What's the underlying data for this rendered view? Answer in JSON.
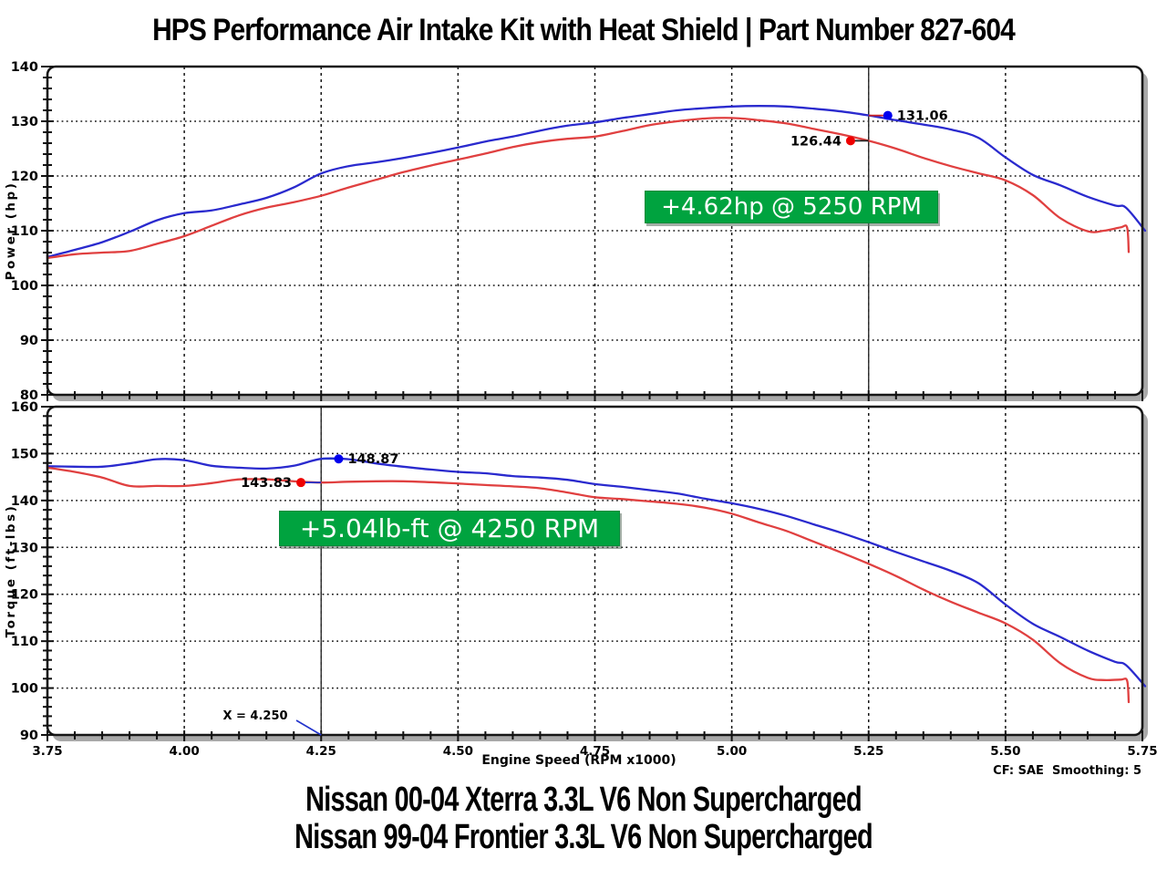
{
  "title": "HPS Performance Air Intake Kit with Heat Shield | Part Number 827-604",
  "footer": {
    "line1": "Nissan 00-04 Xterra 3.3L V6 Non Supercharged",
    "line2": "Nissan 99-04 Frontier 3.3L V6 Non Supercharged"
  },
  "notes": {
    "correction": "CF: SAE  Smoothing: 5"
  },
  "xaxis": {
    "title": "Engine Speed (RPM x1000)",
    "tick_values": [
      3.75,
      4.0,
      4.25,
      4.5,
      4.75,
      5.0,
      5.25,
      5.5,
      5.75
    ],
    "tick_labels": [
      "3.75",
      "4.00",
      "4.25",
      "4.50",
      "4.75",
      "5.00",
      "5.25",
      "5.50",
      "5.75"
    ],
    "minor_step": 0.05
  },
  "colors": {
    "blue_curve": "#2a2ace",
    "red_curve": "#e04040",
    "blue_dot": "#0000ee",
    "red_dot": "#ee0000",
    "grid": "#161616",
    "frame": "#161616",
    "shadow": "#a9a9a9",
    "annotation_green": "#00a33f"
  },
  "chart_data": [
    {
      "type": "line",
      "title": "",
      "xlabel": "Engine Speed (RPM x1000)",
      "ylabel": "Power (hp)",
      "xlim": [
        3.75,
        5.75
      ],
      "ylim": [
        80,
        140
      ],
      "yticks": [
        80,
        90,
        100,
        110,
        120,
        130,
        140
      ],
      "y_minor_step": 2,
      "grid": true,
      "legend": "none",
      "cursor_x": 5.25,
      "cursor_label": "",
      "gain_label": "+4.62hp @ 5250 RPM",
      "series": [
        {
          "name": "blue-series",
          "color": "#2a2ace",
          "x": [
            3.75,
            3.8,
            3.85,
            3.9,
            3.95,
            4.0,
            4.05,
            4.1,
            4.15,
            4.2,
            4.25,
            4.3,
            4.35,
            4.4,
            4.45,
            4.5,
            4.55,
            4.6,
            4.65,
            4.7,
            4.75,
            4.8,
            4.85,
            4.9,
            4.95,
            5.0,
            5.05,
            5.1,
            5.15,
            5.2,
            5.25,
            5.3,
            5.35,
            5.4,
            5.45,
            5.5,
            5.55,
            5.6,
            5.65,
            5.7,
            5.72,
            5.755
          ],
          "y": [
            105.2,
            106.5,
            107.9,
            109.8,
            111.9,
            113.2,
            113.7,
            114.8,
            116.0,
            117.9,
            120.46,
            121.8,
            122.5,
            123.3,
            124.2,
            125.2,
            126.3,
            127.2,
            128.3,
            129.2,
            129.8,
            130.6,
            131.3,
            132.0,
            132.4,
            132.7,
            132.8,
            132.7,
            132.3,
            131.8,
            131.06,
            130.2,
            129.4,
            128.5,
            127.0,
            123.4,
            120.2,
            118.3,
            116.2,
            114.6,
            114.2,
            110.0
          ]
        },
        {
          "name": "red-series",
          "color": "#e04040",
          "x": [
            3.75,
            3.8,
            3.85,
            3.9,
            3.95,
            4.0,
            4.05,
            4.1,
            4.15,
            4.2,
            4.25,
            4.3,
            4.35,
            4.4,
            4.45,
            4.5,
            4.55,
            4.6,
            4.65,
            4.7,
            4.75,
            4.8,
            4.85,
            4.9,
            4.95,
            5.0,
            5.05,
            5.1,
            5.15,
            5.2,
            5.25,
            5.3,
            5.35,
            5.4,
            5.45,
            5.5,
            5.55,
            5.6,
            5.65,
            5.68,
            5.71,
            5.722,
            5.725
          ],
          "y": [
            105.0,
            105.7,
            106.0,
            106.3,
            107.6,
            109.0,
            110.9,
            112.8,
            114.2,
            115.2,
            116.38,
            117.9,
            119.3,
            120.7,
            121.9,
            123.0,
            124.1,
            125.3,
            126.2,
            126.8,
            127.2,
            128.2,
            129.3,
            130.0,
            130.5,
            130.6,
            130.2,
            129.6,
            128.6,
            127.6,
            126.44,
            125.0,
            123.3,
            121.8,
            120.5,
            119.2,
            116.5,
            112.3,
            109.9,
            110.0,
            110.6,
            110.6,
            106.1
          ]
        }
      ],
      "markers": [
        {
          "value": "131.06",
          "y": 131.06,
          "dot_x": 5.285,
          "side": "right",
          "dot_color": "#0000ee",
          "leader_color": "#cc2222"
        },
        {
          "value": "126.44",
          "y": 126.44,
          "dot_x": 5.217,
          "side": "left",
          "dot_color": "#ee0000",
          "leader_color": "#222222"
        }
      ]
    },
    {
      "type": "line",
      "title": "",
      "xlabel": "Engine Speed (RPM x1000)",
      "ylabel": "Torque (ft-lbs)",
      "xlim": [
        3.75,
        5.75
      ],
      "ylim": [
        90,
        160
      ],
      "yticks": [
        90,
        100,
        110,
        120,
        130,
        140,
        150,
        160
      ],
      "y_minor_step": 2,
      "grid": true,
      "legend": "none",
      "cursor_x": 4.25,
      "cursor_label": "X = 4.250",
      "gain_label": "+5.04lb-ft @ 4250 RPM",
      "series": [
        {
          "name": "blue-series",
          "color": "#2a2ace",
          "x": [
            3.75,
            3.8,
            3.85,
            3.9,
            3.95,
            4.0,
            4.05,
            4.1,
            4.15,
            4.2,
            4.25,
            4.3,
            4.35,
            4.4,
            4.45,
            4.5,
            4.55,
            4.6,
            4.65,
            4.7,
            4.75,
            4.8,
            4.85,
            4.9,
            4.95,
            5.0,
            5.05,
            5.1,
            5.15,
            5.2,
            5.25,
            5.3,
            5.35,
            5.4,
            5.45,
            5.5,
            5.55,
            5.6,
            5.65,
            5.7,
            5.72,
            5.755
          ],
          "y": [
            147.3,
            147.2,
            147.2,
            147.9,
            148.8,
            148.6,
            147.4,
            147.0,
            146.8,
            147.4,
            148.87,
            148.8,
            147.9,
            147.2,
            146.6,
            146.1,
            145.8,
            145.2,
            144.9,
            144.4,
            143.5,
            142.9,
            142.2,
            141.5,
            140.4,
            139.4,
            138.2,
            136.7,
            134.9,
            133.1,
            131.1,
            129.0,
            127.0,
            125.0,
            122.4,
            117.8,
            113.7,
            110.9,
            108.0,
            105.6,
            104.9,
            100.4
          ]
        },
        {
          "name": "red-series",
          "color": "#e04040",
          "x": [
            3.75,
            3.8,
            3.85,
            3.9,
            3.95,
            4.0,
            4.05,
            4.1,
            4.15,
            4.2,
            4.25,
            4.3,
            4.35,
            4.4,
            4.45,
            4.5,
            4.55,
            4.6,
            4.65,
            4.7,
            4.75,
            4.8,
            4.85,
            4.9,
            4.95,
            5.0,
            5.05,
            5.1,
            5.15,
            5.2,
            5.25,
            5.3,
            5.35,
            5.4,
            5.45,
            5.5,
            5.55,
            5.6,
            5.65,
            5.68,
            5.71,
            5.722,
            5.725
          ],
          "y": [
            147.0,
            146.1,
            144.9,
            143.1,
            143.1,
            143.1,
            143.7,
            144.5,
            144.5,
            144.1,
            143.83,
            144.0,
            144.1,
            144.1,
            143.9,
            143.6,
            143.3,
            143.0,
            142.6,
            141.7,
            140.7,
            140.3,
            139.8,
            139.3,
            138.5,
            137.2,
            135.3,
            133.5,
            131.2,
            128.9,
            126.5,
            123.9,
            121.0,
            118.4,
            116.1,
            113.8,
            110.3,
            105.3,
            102.2,
            101.7,
            101.8,
            101.6,
            97.0
          ]
        }
      ],
      "markers": [
        {
          "value": "148.87",
          "y": 148.87,
          "dot_x": 4.282,
          "side": "right",
          "dot_color": "#0000ee",
          "leader_color": "#2233cc"
        },
        {
          "value": "143.83",
          "y": 143.83,
          "dot_x": 4.213,
          "side": "left",
          "dot_color": "#ee0000",
          "leader_color": "#2233cc"
        }
      ]
    }
  ]
}
